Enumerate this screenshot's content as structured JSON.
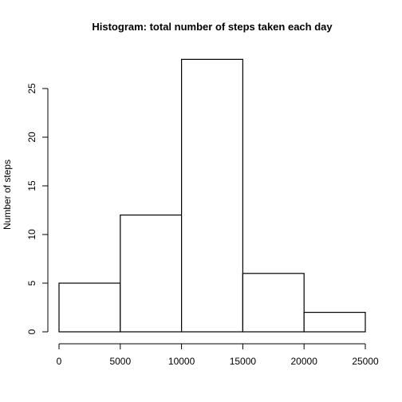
{
  "chart_data": {
    "type": "bar",
    "title": "Histogram: total number of steps taken each day",
    "xlabel": "",
    "ylabel": "Number of steps",
    "bins": [
      {
        "from": 0,
        "to": 5000,
        "count": 5
      },
      {
        "from": 5000,
        "to": 10000,
        "count": 12
      },
      {
        "from": 10000,
        "to": 15000,
        "count": 28
      },
      {
        "from": 15000,
        "to": 20000,
        "count": 6
      },
      {
        "from": 20000,
        "to": 25000,
        "count": 2
      }
    ],
    "xlim": [
      0,
      25000
    ],
    "ylim": [
      0,
      28
    ],
    "x_ticks": [
      0,
      5000,
      10000,
      15000,
      20000,
      25000
    ],
    "y_ticks": [
      0,
      5,
      10,
      15,
      20,
      25
    ],
    "grid": false,
    "bar_fill": "#ffffff",
    "bar_stroke": "#000000"
  }
}
